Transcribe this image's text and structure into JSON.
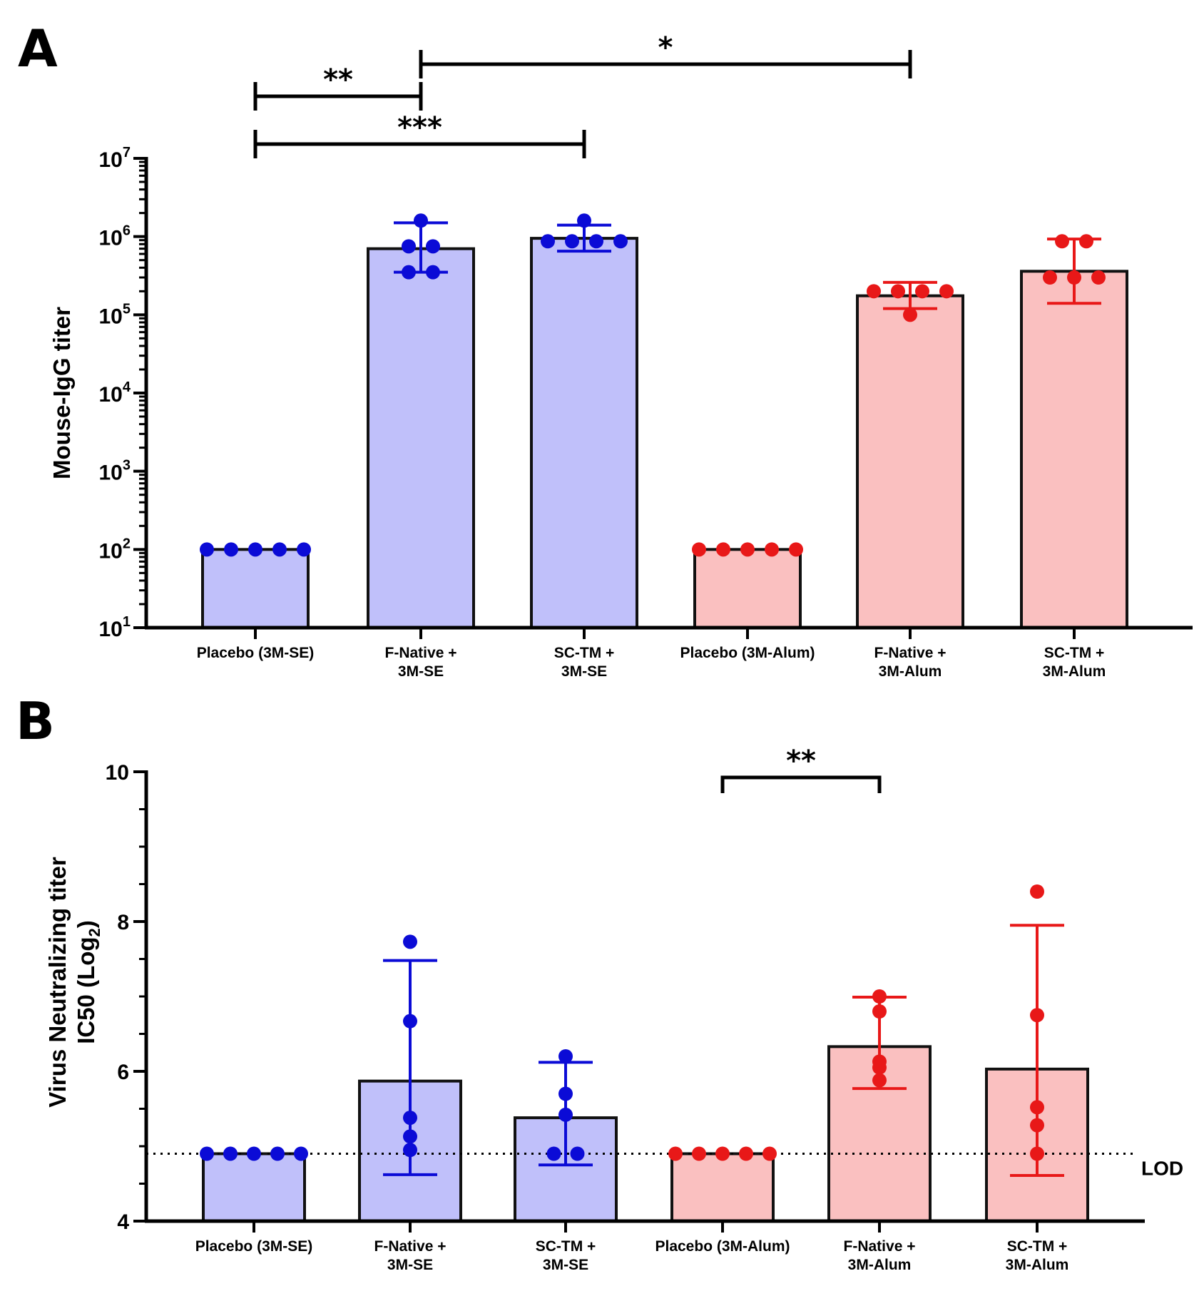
{
  "chart_data": [
    {
      "panel": "A",
      "type": "bar",
      "ylabel": "Mouse-IgG titer",
      "yscale": "log",
      "ylim": [
        10,
        10000000
      ],
      "yticks": [
        {
          "base": "10",
          "exp": "1"
        },
        {
          "base": "10",
          "exp": "2"
        },
        {
          "base": "10",
          "exp": "3"
        },
        {
          "base": "10",
          "exp": "4"
        },
        {
          "base": "10",
          "exp": "5"
        },
        {
          "base": "10",
          "exp": "6"
        },
        {
          "base": "10",
          "exp": "7"
        }
      ],
      "categories": [
        {
          "lines": [
            "Placebo (3M-SE)"
          ],
          "color": "#c0c0fa",
          "point_color": "#0b0bd6",
          "err_color": "#0b0bd6"
        },
        {
          "lines": [
            "F-Native +",
            "3M-SE"
          ],
          "color": "#c0c0fa",
          "point_color": "#0b0bd6",
          "err_color": "#0b0bd6"
        },
        {
          "lines": [
            "SC-TM +",
            "3M-SE"
          ],
          "color": "#c0c0fa",
          "point_color": "#0b0bd6",
          "err_color": "#0b0bd6"
        },
        {
          "lines": [
            "Placebo (3M-Alum)"
          ],
          "color": "#fac0c0",
          "point_color": "#e81818",
          "err_color": "#e81818"
        },
        {
          "lines": [
            "F-Native +",
            "3M-Alum"
          ],
          "color": "#fac0c0",
          "point_color": "#e81818",
          "err_color": "#e81818"
        },
        {
          "lines": [
            "SC-TM +",
            "3M-Alum"
          ],
          "color": "#fac0c0",
          "point_color": "#e81818",
          "err_color": "#e81818"
        }
      ],
      "values": [
        100,
        700000,
        950000,
        100,
        175000,
        360000
      ],
      "error_low": [
        100,
        350000,
        650000,
        100,
        120000,
        140000
      ],
      "error_high": [
        100,
        1500000,
        1400000,
        100,
        260000,
        930000
      ],
      "points": [
        [
          100,
          100,
          100,
          100,
          100
        ],
        [
          1600000,
          750000,
          750000,
          350000,
          350000
        ],
        [
          1600000,
          870000,
          870000,
          870000,
          870000
        ],
        [
          100,
          100,
          100,
          100,
          100
        ],
        [
          200000,
          200000,
          200000,
          200000,
          100000
        ],
        [
          870000,
          870000,
          300000,
          300000,
          300000
        ]
      ],
      "significance": [
        {
          "from": 0,
          "to": 1,
          "label": "**"
        },
        {
          "from": 0,
          "to": 2,
          "label": "***"
        },
        {
          "from": 1,
          "to": 4,
          "label": "*"
        }
      ]
    },
    {
      "panel": "B",
      "type": "bar",
      "ylabel_lines": [
        "Virus Neutralizing titer",
        "IC50 (Log",
        "2",
        ")"
      ],
      "ylim": [
        4,
        10
      ],
      "yticks": [
        "4",
        "6",
        "8",
        "10"
      ],
      "categories": [
        {
          "lines": [
            "Placebo (3M-SE)"
          ],
          "color": "#c0c0fa",
          "point_color": "#0b0bd6",
          "err_color": "#0b0bd6"
        },
        {
          "lines": [
            "F-Native +",
            "3M-SE"
          ],
          "color": "#c0c0fa",
          "point_color": "#0b0bd6",
          "err_color": "#0b0bd6"
        },
        {
          "lines": [
            "SC-TM +",
            "3M-SE"
          ],
          "color": "#c0c0fa",
          "point_color": "#0b0bd6",
          "err_color": "#0b0bd6"
        },
        {
          "lines": [
            "Placebo (3M-Alum)"
          ],
          "color": "#fac0c0",
          "point_color": "#e81818",
          "err_color": "#e81818"
        },
        {
          "lines": [
            "F-Native +",
            "3M-Alum"
          ],
          "color": "#fac0c0",
          "point_color": "#e81818",
          "err_color": "#e81818"
        },
        {
          "lines": [
            "SC-TM +",
            "3M-Alum"
          ],
          "color": "#fac0c0",
          "point_color": "#e81818",
          "err_color": "#e81818"
        }
      ],
      "values": [
        4.9,
        5.87,
        5.38,
        4.9,
        6.33,
        6.03
      ],
      "error_low": [
        4.9,
        4.62,
        4.75,
        4.9,
        5.77,
        4.61
      ],
      "error_high": [
        4.9,
        7.48,
        6.12,
        4.9,
        6.99,
        7.95
      ],
      "points": [
        [
          4.9,
          4.9,
          4.9,
          4.9,
          4.9
        ],
        [
          7.73,
          6.67,
          5.38,
          5.13,
          4.95
        ],
        [
          6.2,
          5.7,
          5.42,
          4.9,
          4.9
        ],
        [
          4.9,
          4.9,
          4.9,
          4.9,
          4.9
        ],
        [
          7.0,
          6.8,
          6.05,
          6.13,
          5.88
        ],
        [
          8.4,
          6.75,
          5.52,
          5.28,
          4.9
        ]
      ],
      "reference_line": {
        "value": 4.9,
        "label": "LOD"
      },
      "significance": [
        {
          "from": 3,
          "to": 4,
          "label": "**"
        }
      ]
    }
  ]
}
